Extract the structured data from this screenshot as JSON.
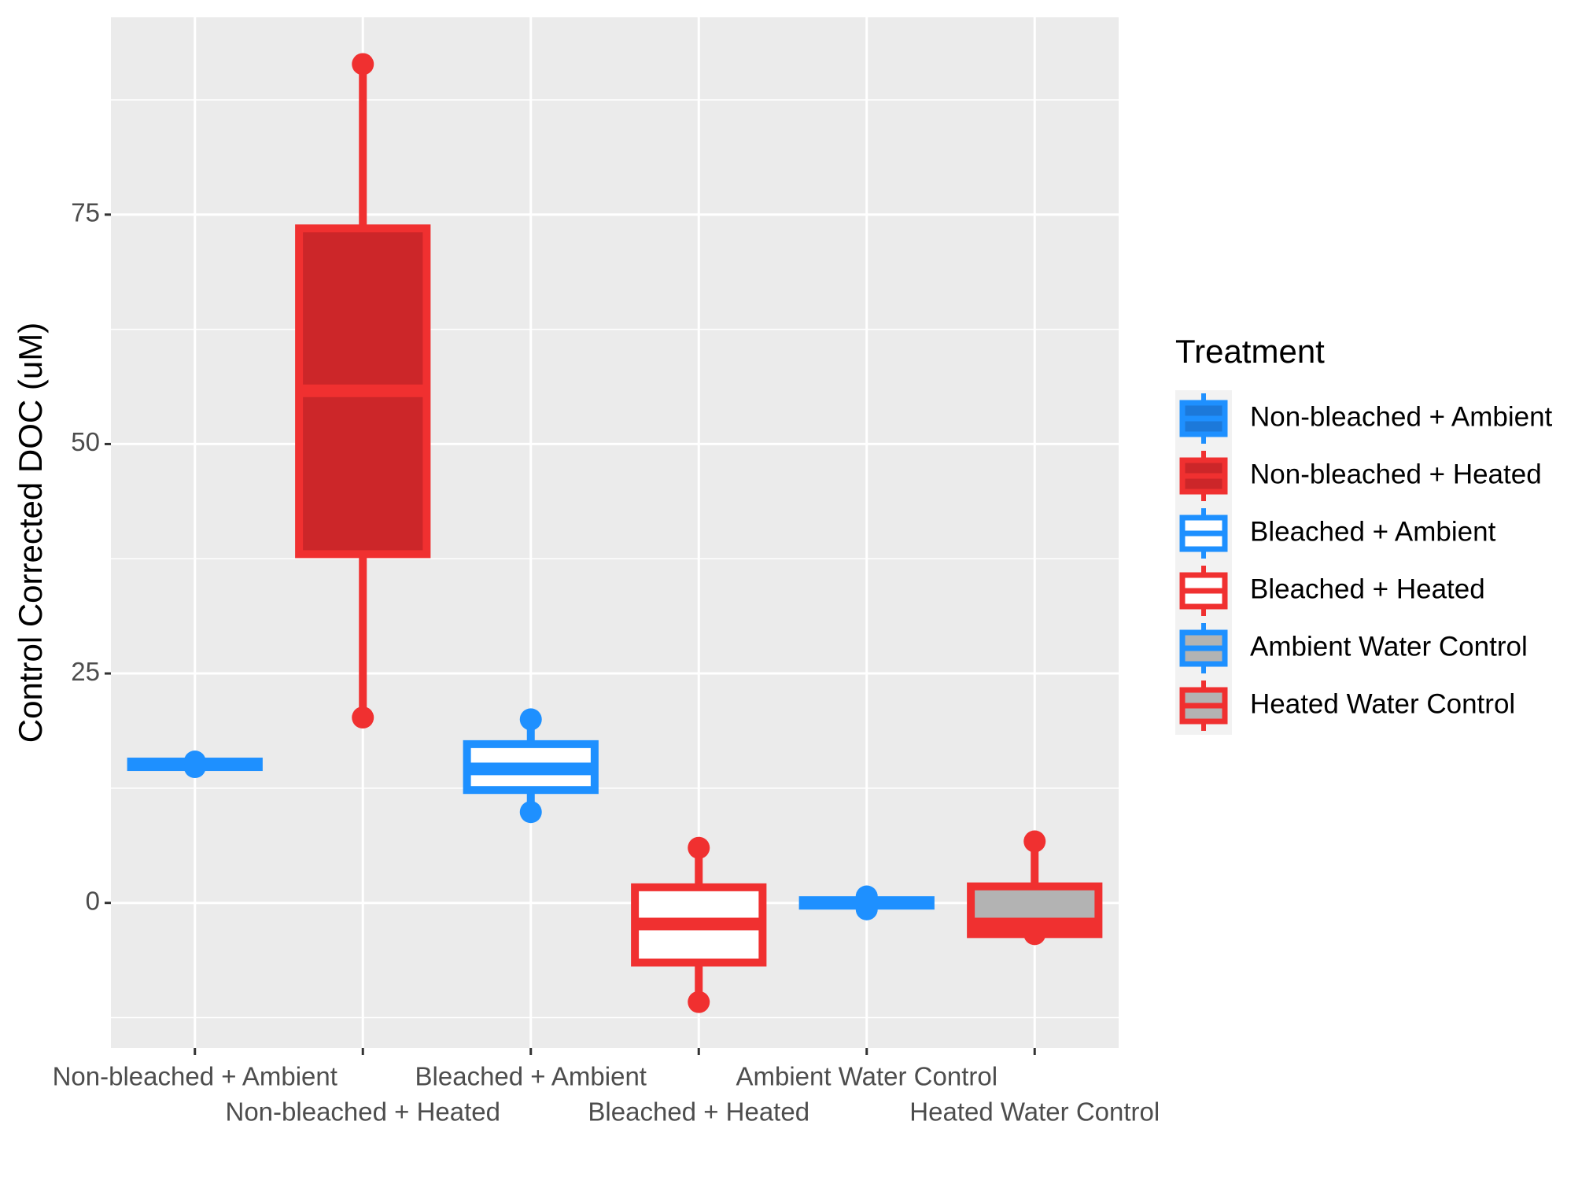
{
  "chart_data": {
    "type": "box",
    "y_label": "Control Corrected DOC (uM)",
    "legend_title": "Treatment",
    "categories": [
      "Non-bleached + Ambient",
      "Non-bleached + Heated",
      "Bleached + Ambient",
      "Bleached + Heated",
      "Ambient Water Control",
      "Heated Water Control"
    ],
    "min": [
      14.8,
      20.2,
      9.9,
      -10.8,
      -0.7,
      -3.4
    ],
    "q1": [
      14.8,
      38,
      12.3,
      -6.5,
      -0.3,
      -3.4
    ],
    "median": [
      15.1,
      55.8,
      14.6,
      -2.3,
      0,
      -2.3
    ],
    "q3": [
      15.4,
      73.5,
      17.3,
      1.7,
      0.3,
      1.8
    ],
    "max": [
      15.4,
      91.4,
      20,
      6,
      0.7,
      6.7
    ],
    "colors": [
      "#1E90FF",
      "#F03030",
      "#1E90FF",
      "#F03030",
      "#1E90FF",
      "#F03030"
    ],
    "fills": [
      "#1C79DA",
      "#CC2629",
      "#FFFFFF",
      "#FFFFFF",
      "#B3B3B3",
      "#B3B3B3"
    ],
    "ylim": [
      -15.8,
      96.5
    ],
    "yticks": [
      0,
      25,
      50,
      75
    ],
    "minor_grid": [
      -12.5,
      12.5,
      37.5,
      62.5,
      87.5
    ],
    "grid": true,
    "legend_position": "right"
  }
}
